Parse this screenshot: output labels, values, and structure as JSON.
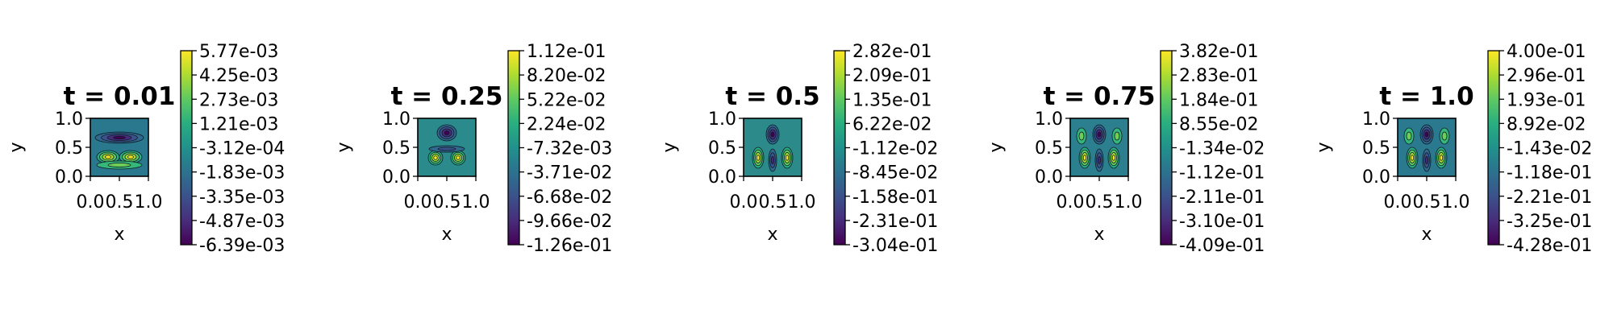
{
  "chart_data": [
    {
      "type": "heatmap",
      "title": "t = 0.01",
      "xlabel": "x",
      "ylabel": "y",
      "xlim": [
        0,
        1
      ],
      "ylim": [
        0,
        1
      ],
      "x_ticks": [
        "0.0",
        "0.5",
        "1.0"
      ],
      "y_ticks": [
        "0.0",
        "0.5",
        "1.0"
      ],
      "colormap": "viridis",
      "clim": [
        -0.00639,
        0.00577
      ],
      "colorbar_ticks": [
        "5.77e-03",
        "4.25e-03",
        "2.73e-03",
        "1.21e-03",
        "-3.12e-04",
        "-1.83e-03",
        "-3.35e-03",
        "-4.87e-03",
        "-6.39e-03"
      ]
    },
    {
      "type": "heatmap",
      "title": "t = 0.25",
      "xlabel": "x",
      "ylabel": "y",
      "xlim": [
        0,
        1
      ],
      "ylim": [
        0,
        1
      ],
      "x_ticks": [
        "0.0",
        "0.5",
        "1.0"
      ],
      "y_ticks": [
        "0.0",
        "0.5",
        "1.0"
      ],
      "colormap": "viridis",
      "clim": [
        -0.126,
        0.112
      ],
      "colorbar_ticks": [
        "1.12e-01",
        "8.20e-02",
        "5.22e-02",
        "2.24e-02",
        "-7.32e-03",
        "-3.71e-02",
        "-6.68e-02",
        "-9.66e-02",
        "-1.26e-01"
      ]
    },
    {
      "type": "heatmap",
      "title": "t = 0.5",
      "xlabel": "x",
      "ylabel": "y",
      "xlim": [
        0,
        1
      ],
      "ylim": [
        0,
        1
      ],
      "x_ticks": [
        "0.0",
        "0.5",
        "1.0"
      ],
      "y_ticks": [
        "0.0",
        "0.5",
        "1.0"
      ],
      "colormap": "viridis",
      "clim": [
        -0.304,
        0.282
      ],
      "colorbar_ticks": [
        "2.82e-01",
        "2.09e-01",
        "1.35e-01",
        "6.22e-02",
        "-1.12e-02",
        "-8.45e-02",
        "-1.58e-01",
        "-2.31e-01",
        "-3.04e-01"
      ]
    },
    {
      "type": "heatmap",
      "title": "t = 0.75",
      "xlabel": "x",
      "ylabel": "y",
      "xlim": [
        0,
        1
      ],
      "ylim": [
        0,
        1
      ],
      "x_ticks": [
        "0.0",
        "0.5",
        "1.0"
      ],
      "y_ticks": [
        "0.0",
        "0.5",
        "1.0"
      ],
      "colormap": "viridis",
      "clim": [
        -0.409,
        0.382
      ],
      "colorbar_ticks": [
        "3.82e-01",
        "2.83e-01",
        "1.84e-01",
        "8.55e-02",
        "-1.34e-02",
        "-1.12e-01",
        "-2.11e-01",
        "-3.10e-01",
        "-4.09e-01"
      ]
    },
    {
      "type": "heatmap",
      "title": "t = 1.0",
      "xlabel": "x",
      "ylabel": "y",
      "xlim": [
        0,
        1
      ],
      "ylim": [
        0,
        1
      ],
      "x_ticks": [
        "0.0",
        "0.5",
        "1.0"
      ],
      "y_ticks": [
        "0.0",
        "0.5",
        "1.0"
      ],
      "colormap": "viridis",
      "clim": [
        -0.428,
        0.4
      ],
      "colorbar_ticks": [
        "4.00e-01",
        "2.96e-01",
        "1.93e-01",
        "8.92e-02",
        "-1.43e-02",
        "-1.18e-01",
        "-2.21e-01",
        "-3.25e-01",
        "-4.28e-01"
      ]
    }
  ]
}
